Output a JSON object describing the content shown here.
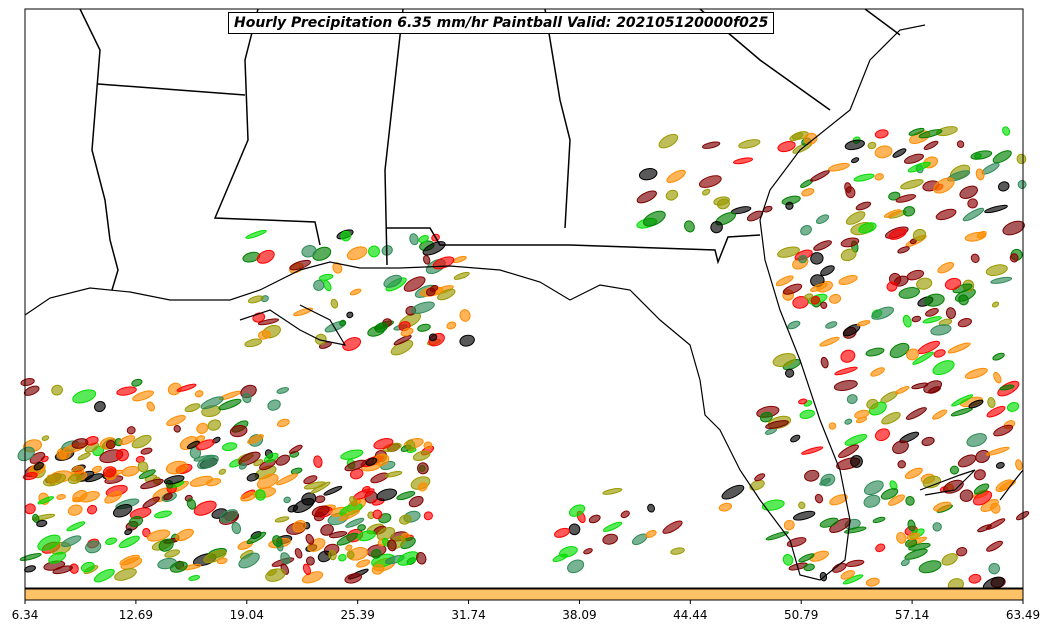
{
  "title": "Hourly Precipitation 6.35 mm/hr Paintball Valid: 202105120000f025",
  "colorbar": {
    "color": "#ffc266",
    "ticks": [
      "6.34",
      "12.69",
      "19.04",
      "25.39",
      "31.74",
      "38.09",
      "44.44",
      "50.79",
      "57.14",
      "63.49"
    ]
  },
  "paintball_colors": [
    "#ff0000",
    "#8b0000",
    "#ff8c00",
    "#008000",
    "#00dd00",
    "#000000",
    "#9a9a00",
    "#2e8b57",
    "#ff8c00",
    "#7b0000"
  ]
}
